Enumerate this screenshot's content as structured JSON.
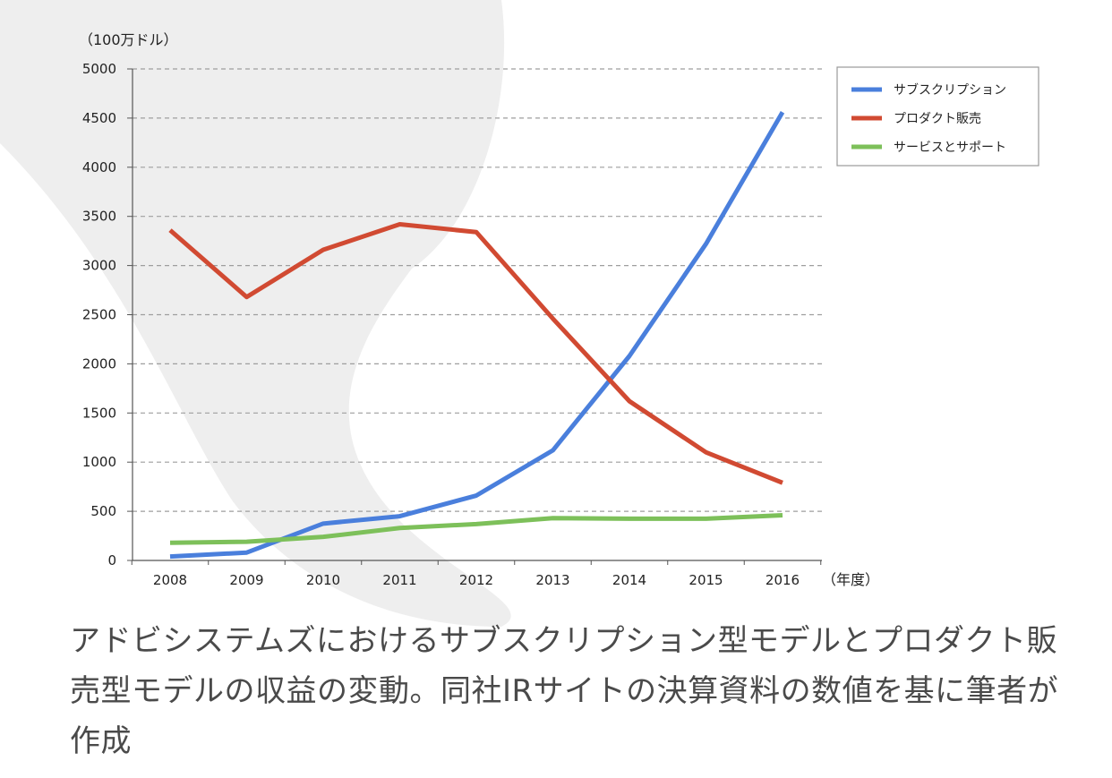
{
  "chart_data": {
    "type": "line",
    "x": [
      "2008",
      "2009",
      "2010",
      "2011",
      "2012",
      "2013",
      "2014",
      "2015",
      "2016"
    ],
    "y_unit_label": "（100万ドル）",
    "x_unit_label": "（年度）",
    "ylim": [
      0,
      5000
    ],
    "yticks": [
      0,
      500,
      1000,
      1500,
      2000,
      2500,
      3000,
      3500,
      4000,
      4500,
      5000
    ],
    "grid": true,
    "legend_position": "top-right",
    "series": [
      {
        "name": "サブスクリプション",
        "color": "#4a7fdc",
        "values": [
          40,
          80,
          375,
          450,
          660,
          1120,
          2080,
          3220,
          4560
        ]
      },
      {
        "name": "プロダクト販売",
        "color": "#d14a32",
        "values": [
          3360,
          2680,
          3160,
          3420,
          3340,
          2460,
          1620,
          1100,
          790
        ]
      },
      {
        "name": "サービスとサポート",
        "color": "#7dc05a",
        "values": [
          180,
          190,
          240,
          330,
          370,
          430,
          425,
          425,
          460
        ]
      }
    ]
  },
  "caption": "アドビシステムズにおけるサブスクリプション型モデルとプロダクト販売型モデルの収益の変動。同社IRサイトの決算資料の数値を基に筆者が作成"
}
